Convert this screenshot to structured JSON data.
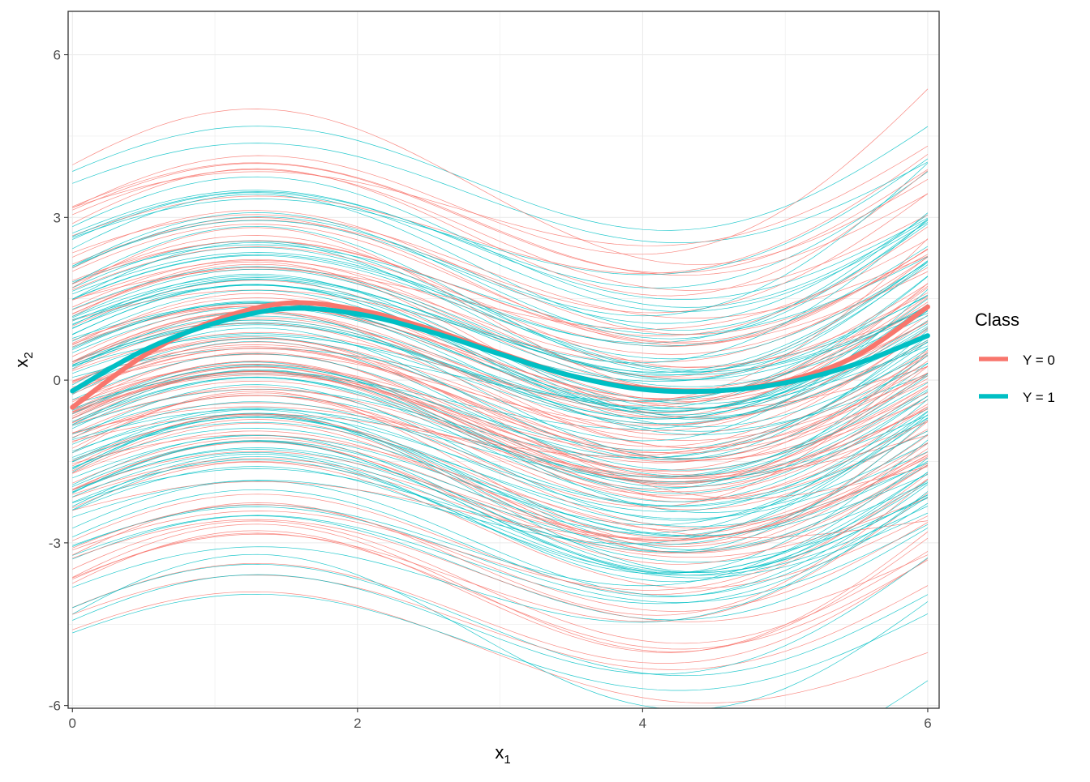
{
  "chart_data": {
    "type": "line",
    "xlabel": "x",
    "xlabel_sub": "1",
    "ylabel": "x",
    "ylabel_sub": "2",
    "xlim": [
      0,
      6
    ],
    "ylim": [
      -6,
      6
    ],
    "x_ticks": [
      "0",
      "2",
      "4",
      "6"
    ],
    "y_ticks": [
      "6",
      "3",
      "0",
      "-3",
      "-6"
    ],
    "grid": true,
    "legend": {
      "title": "Class",
      "position": "right",
      "entries": [
        "Y = 0",
        "Y = 1"
      ]
    },
    "colors": {
      "Y = 0": "#F8766D",
      "Y = 1": "#00BFC4"
    },
    "series": [
      {
        "name": "Y = 0",
        "x": [
          0,
          0.5,
          1,
          1.5,
          2,
          2.5,
          3,
          3.5,
          4,
          4.5,
          5,
          5.5,
          6
        ],
        "values": [
          -0.5,
          0.45,
          1.1,
          1.42,
          1.3,
          0.95,
          0.5,
          0.08,
          -0.15,
          -0.2,
          -0.02,
          0.45,
          1.35
        ]
      },
      {
        "name": "Y = 1",
        "x": [
          0,
          0.5,
          1,
          1.5,
          2,
          2.5,
          3,
          3.5,
          4,
          4.5,
          5,
          5.5,
          6
        ],
        "values": [
          -0.2,
          0.55,
          1.05,
          1.32,
          1.22,
          0.9,
          0.48,
          0.08,
          -0.17,
          -0.2,
          -0.05,
          0.3,
          0.82
        ]
      }
    ],
    "sample_curves": {
      "count_per_class": 100,
      "model": "a + b*sin(x + 0.3) + c*x^3/216",
      "offset_range": [
        -5,
        5
      ]
    }
  }
}
